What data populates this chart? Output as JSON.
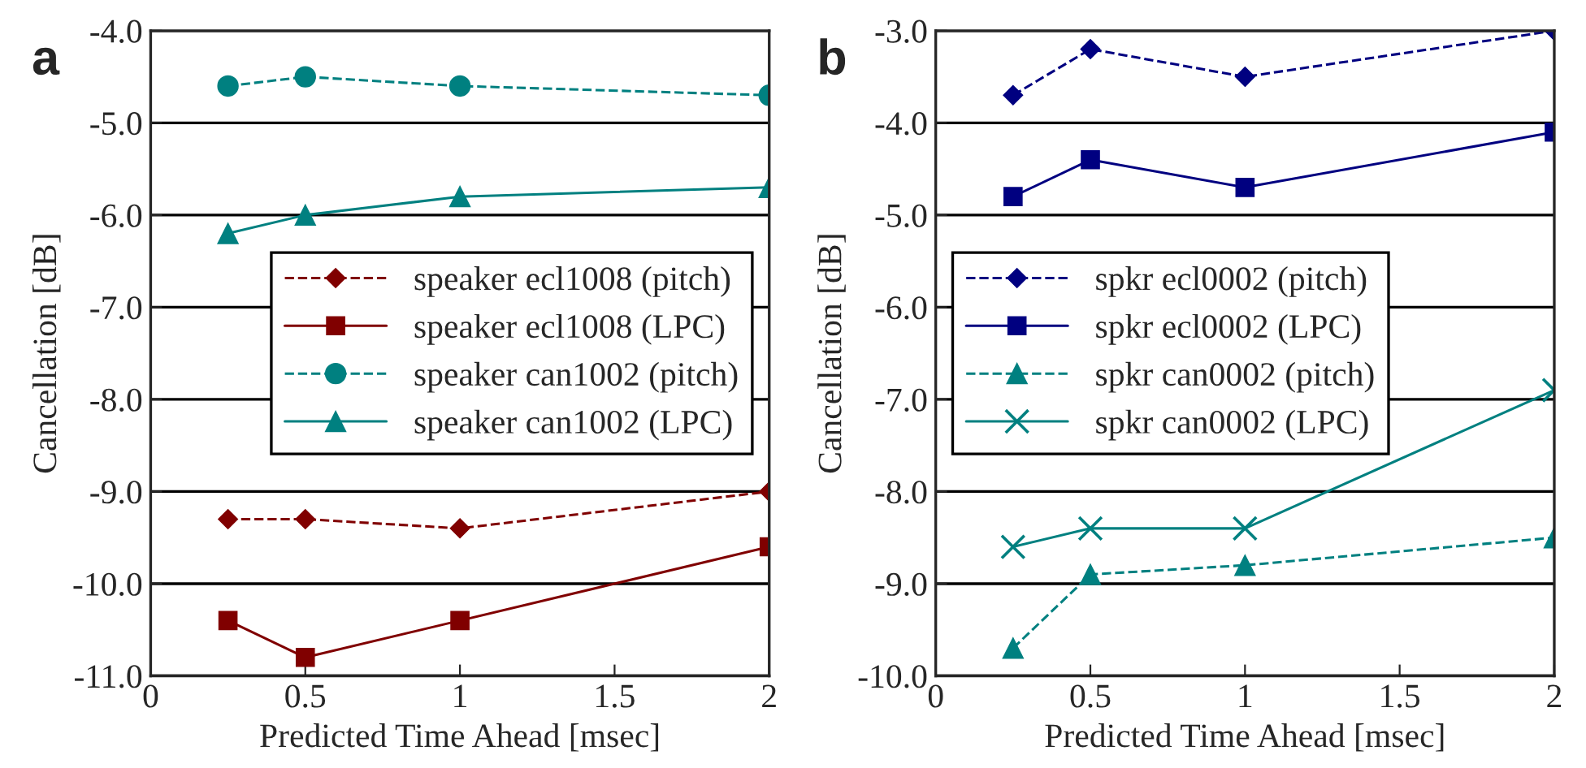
{
  "chart_data": [
    {
      "type": "line",
      "title": "a",
      "xlabel": "Predicted Time Ahead [msec]",
      "ylabel": "Cancellation [dB]",
      "x": [
        0.25,
        0.5,
        1,
        2
      ],
      "xlim": [
        0,
        2
      ],
      "xticks": [
        0,
        0.5,
        1,
        1.5,
        2
      ],
      "ylim": [
        -11,
        -4
      ],
      "yticks": [
        {
          "value": -11,
          "label": "-11.0"
        },
        {
          "value": -10,
          "label": "-10.0"
        },
        {
          "value": -9,
          "label": "-9.0"
        },
        {
          "value": -8,
          "label": "-8.0"
        },
        {
          "value": -7,
          "label": "-7.0"
        },
        {
          "value": -6,
          "label": "-6.0"
        },
        {
          "value": -5,
          "label": "-5.0"
        },
        {
          "value": -4,
          "label": "-4.0"
        }
      ],
      "grid": "y",
      "legend": "center right",
      "series": [
        {
          "name": "speaker ecl1008 (pitch)",
          "color": "#800000",
          "marker": "diamond",
          "line_style": "dashed",
          "values": [
            -9.3,
            -9.3,
            -9.4,
            -9.0
          ]
        },
        {
          "name": "speaker ecl1008 (LPC)",
          "color": "#800000",
          "marker": "square",
          "line_style": "solid",
          "values": [
            -10.4,
            -10.8,
            -10.4,
            -9.6
          ]
        },
        {
          "name": "speaker can1002 (pitch)",
          "color": "#008080",
          "marker": "circle",
          "line_style": "dashed",
          "values": [
            -4.6,
            -4.5,
            -4.6,
            -4.7
          ]
        },
        {
          "name": "speaker can1002 (LPC)",
          "color": "#008080",
          "marker": "triangle",
          "line_style": "solid",
          "values": [
            -6.2,
            -6.0,
            -5.8,
            -5.7
          ]
        }
      ]
    },
    {
      "type": "line",
      "title": "b",
      "xlabel": "Predicted Time Ahead [msec]",
      "ylabel": "Cancellation [dB]",
      "x": [
        0.25,
        0.5,
        1,
        2
      ],
      "xlim": [
        0,
        2
      ],
      "xticks": [
        0,
        0.5,
        1,
        1.5,
        2
      ],
      "ylim": [
        -10,
        -3
      ],
      "yticks": [
        {
          "value": -10,
          "label": "-10.0"
        },
        {
          "value": -9,
          "label": "-9.0"
        },
        {
          "value": -8,
          "label": "-8.0"
        },
        {
          "value": -7,
          "label": "-7.0"
        },
        {
          "value": -6,
          "label": "-6.0"
        },
        {
          "value": -5,
          "label": "-5.0"
        },
        {
          "value": -4,
          "label": "-4.0"
        },
        {
          "value": -3,
          "label": "-3.0"
        }
      ],
      "grid": "y",
      "legend": "center left",
      "series": [
        {
          "name": "spkr ecl0002 (pitch)",
          "color": "#000080",
          "marker": "diamond",
          "line_style": "dashed",
          "values": [
            -3.7,
            -3.2,
            -3.5,
            -3.0
          ]
        },
        {
          "name": "spkr ecl0002 (LPC)",
          "color": "#000080",
          "marker": "square",
          "line_style": "solid",
          "values": [
            -4.8,
            -4.4,
            -4.7,
            -4.1
          ]
        },
        {
          "name": "spkr can0002 (pitch)",
          "color": "#008080",
          "marker": "triangle",
          "line_style": "dashed",
          "values": [
            -9.7,
            -8.9,
            -8.8,
            -8.5
          ]
        },
        {
          "name": "spkr can0002 (LPC)",
          "color": "#008080",
          "marker": "cross",
          "line_style": "solid",
          "values": [
            -8.6,
            -8.4,
            -8.4,
            -6.9
          ]
        }
      ]
    }
  ]
}
